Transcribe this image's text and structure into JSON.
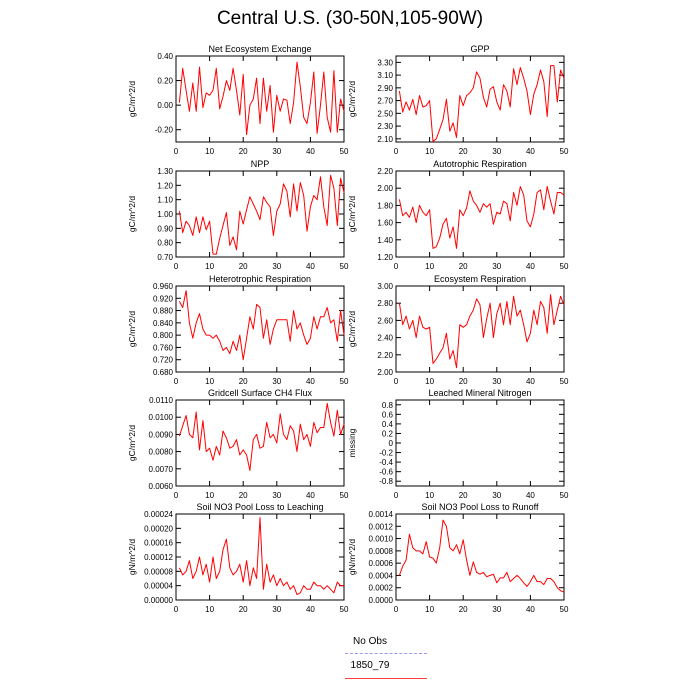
{
  "title": "Central U.S. (30-50N,105-90W)",
  "legend": {
    "entries": [
      {
        "label": "No Obs",
        "color": "#9b9bf0",
        "style": "dashed"
      },
      {
        "label": "1850_79",
        "color": "#ff3b3b",
        "style": "solid"
      }
    ]
  },
  "colors": {
    "series": "#ff0000"
  },
  "chart_data": [
    {
      "type": "line",
      "title": "Net Ecosystem Exchange",
      "ylabel": "gC/m^2/d",
      "xlim": [
        0,
        50
      ],
      "ylim": [
        -0.3,
        0.4
      ],
      "xticks": [
        "0",
        "10",
        "20",
        "30",
        "40",
        "50"
      ],
      "yticks": [
        "-0.20",
        "0.00",
        "0.20",
        "0.40"
      ],
      "x": [
        1,
        2,
        3,
        4,
        5,
        6,
        7,
        8,
        9,
        10,
        11,
        12,
        13,
        14,
        15,
        16,
        17,
        18,
        19,
        20,
        21,
        22,
        23,
        24,
        25,
        26,
        27,
        28,
        29,
        30,
        31,
        32,
        33,
        34,
        35,
        36,
        37,
        38,
        39,
        40,
        41,
        42,
        43,
        44,
        45,
        46,
        47,
        48,
        49,
        50
      ],
      "values": [
        0.02,
        0.3,
        0.12,
        -0.05,
        0.18,
        -0.05,
        0.31,
        -0.02,
        0.1,
        0.08,
        0.12,
        0.3,
        -0.03,
        0.07,
        0.2,
        0.12,
        0.3,
        0.12,
        -0.08,
        0.25,
        -0.24,
        0.0,
        0.05,
        0.22,
        -0.15,
        0.22,
        -0.05,
        0.16,
        -0.22,
        0.08,
        -0.05,
        0.05,
        0.04,
        -0.15,
        0.02,
        0.35,
        0.15,
        -0.1,
        -0.15,
        0.02,
        0.27,
        -0.23,
        0.0,
        0.27,
        -0.1,
        -0.22,
        0.28,
        -0.22,
        0.05,
        -0.05
      ]
    },
    {
      "type": "line",
      "title": "GPP",
      "ylabel": "gC/m^2/d",
      "xlim": [
        0,
        50
      ],
      "ylim": [
        2.05,
        3.4
      ],
      "xticks": [
        "0",
        "10",
        "20",
        "30",
        "40",
        "50"
      ],
      "yticks": [
        "2.10",
        "2.30",
        "2.50",
        "2.70",
        "2.90",
        "3.10",
        "3.30"
      ],
      "x": [
        1,
        2,
        3,
        4,
        5,
        6,
        7,
        8,
        9,
        10,
        11,
        12,
        13,
        14,
        15,
        16,
        17,
        18,
        19,
        20,
        21,
        22,
        23,
        24,
        25,
        26,
        27,
        28,
        29,
        30,
        31,
        32,
        33,
        34,
        35,
        36,
        37,
        38,
        39,
        40,
        41,
        42,
        43,
        44,
        45,
        46,
        47,
        48,
        49,
        50
      ],
      "values": [
        2.85,
        2.52,
        2.68,
        2.55,
        2.72,
        2.48,
        2.78,
        2.6,
        2.62,
        2.7,
        2.06,
        2.1,
        2.25,
        2.4,
        2.72,
        2.22,
        2.35,
        2.12,
        2.78,
        2.62,
        2.78,
        2.82,
        2.9,
        3.15,
        3.05,
        2.75,
        2.6,
        2.88,
        2.92,
        2.68,
        2.55,
        2.95,
        2.85,
        2.6,
        3.2,
        2.95,
        3.22,
        3.05,
        2.85,
        2.48,
        2.8,
        2.95,
        3.18,
        3.0,
        2.45,
        3.25,
        3.25,
        2.68,
        3.18,
        3.05
      ]
    },
    {
      "type": "line",
      "title": "NPP",
      "ylabel": "gC/m^2/d",
      "xlim": [
        0,
        50
      ],
      "ylim": [
        0.7,
        1.3
      ],
      "xticks": [
        "0",
        "10",
        "20",
        "30",
        "40",
        "50"
      ],
      "yticks": [
        "0.70",
        "0.80",
        "0.90",
        "1.00",
        "1.10",
        "1.20",
        "1.30"
      ],
      "x": [
        1,
        2,
        3,
        4,
        5,
        6,
        7,
        8,
        9,
        10,
        11,
        12,
        13,
        14,
        15,
        16,
        17,
        18,
        19,
        20,
        21,
        22,
        23,
        24,
        25,
        26,
        27,
        28,
        29,
        30,
        31,
        32,
        33,
        34,
        35,
        36,
        37,
        38,
        39,
        40,
        41,
        42,
        43,
        44,
        45,
        46,
        47,
        48,
        49,
        50
      ],
      "values": [
        1.02,
        0.87,
        0.95,
        0.92,
        0.85,
        0.98,
        0.87,
        0.98,
        0.89,
        0.95,
        0.72,
        0.72,
        0.83,
        0.92,
        1.01,
        0.78,
        0.84,
        0.75,
        1.02,
        0.93,
        1.03,
        1.12,
        1.07,
        1.02,
        0.96,
        1.12,
        1.08,
        1.05,
        0.85,
        1.02,
        1.07,
        1.21,
        1.16,
        0.98,
        1.21,
        1.02,
        1.22,
        1.13,
        0.88,
        1.05,
        1.13,
        1.1,
        1.26,
        1.05,
        0.92,
        1.27,
        1.18,
        0.92,
        1.25,
        1.15
      ]
    },
    {
      "type": "line",
      "title": "Autotrophic Respiration",
      "ylabel": "gC/m^2/d",
      "xlim": [
        0,
        50
      ],
      "ylim": [
        1.2,
        2.2
      ],
      "xticks": [
        "0",
        "10",
        "20",
        "30",
        "40",
        "50"
      ],
      "yticks": [
        "1.20",
        "1.40",
        "1.60",
        "1.80",
        "2.00",
        "2.20"
      ],
      "x": [
        1,
        2,
        3,
        4,
        5,
        6,
        7,
        8,
        9,
        10,
        11,
        12,
        13,
        14,
        15,
        16,
        17,
        18,
        19,
        20,
        21,
        22,
        23,
        24,
        25,
        26,
        27,
        28,
        29,
        30,
        31,
        32,
        33,
        34,
        35,
        36,
        37,
        38,
        39,
        40,
        41,
        42,
        43,
        44,
        45,
        46,
        47,
        48,
        49,
        50
      ],
      "values": [
        1.87,
        1.68,
        1.72,
        1.66,
        1.78,
        1.6,
        1.8,
        1.72,
        1.68,
        1.75,
        1.3,
        1.32,
        1.42,
        1.58,
        1.65,
        1.42,
        1.55,
        1.3,
        1.75,
        1.68,
        1.77,
        1.97,
        1.85,
        1.8,
        1.72,
        1.82,
        1.78,
        1.82,
        1.58,
        1.72,
        1.7,
        1.85,
        1.82,
        1.62,
        1.95,
        1.8,
        2.02,
        1.92,
        1.62,
        1.55,
        1.7,
        1.95,
        1.98,
        1.75,
        2.02,
        1.85,
        1.7,
        1.95,
        1.95,
        1.92
      ]
    },
    {
      "type": "line",
      "title": "Heterotrophic Respiration",
      "ylabel": "gC/m^2/d",
      "xlim": [
        0,
        50
      ],
      "ylim": [
        0.68,
        0.96
      ],
      "xticks": [
        "0",
        "10",
        "20",
        "30",
        "40",
        "50"
      ],
      "yticks": [
        "0.680",
        "0.720",
        "0.760",
        "0.800",
        "0.840",
        "0.880",
        "0.920",
        "0.960"
      ],
      "x": [
        1,
        2,
        3,
        4,
        5,
        6,
        7,
        8,
        9,
        10,
        11,
        12,
        13,
        14,
        15,
        16,
        17,
        18,
        19,
        20,
        21,
        22,
        23,
        24,
        25,
        26,
        27,
        28,
        29,
        30,
        31,
        32,
        33,
        34,
        35,
        36,
        37,
        38,
        39,
        40,
        41,
        42,
        43,
        44,
        45,
        46,
        47,
        48,
        49,
        50
      ],
      "values": [
        0.91,
        0.89,
        0.945,
        0.84,
        0.79,
        0.84,
        0.87,
        0.82,
        0.8,
        0.8,
        0.79,
        0.8,
        0.78,
        0.75,
        0.76,
        0.74,
        0.78,
        0.75,
        0.8,
        0.72,
        0.79,
        0.86,
        0.82,
        0.9,
        0.89,
        0.79,
        0.85,
        0.77,
        0.82,
        0.85,
        0.85,
        0.85,
        0.85,
        0.78,
        0.88,
        0.82,
        0.84,
        0.8,
        0.77,
        0.79,
        0.86,
        0.82,
        0.86,
        0.86,
        0.89,
        0.84,
        0.85,
        0.78,
        0.88,
        0.8
      ]
    },
    {
      "type": "line",
      "title": "Ecosystem Respiration",
      "ylabel": "gC/m^2/d",
      "xlim": [
        0,
        50
      ],
      "ylim": [
        2.0,
        3.0
      ],
      "xticks": [
        "0",
        "10",
        "20",
        "30",
        "40",
        "50"
      ],
      "yticks": [
        "2.00",
        "2.20",
        "2.40",
        "2.60",
        "2.80",
        "3.00"
      ],
      "x": [
        1,
        2,
        3,
        4,
        5,
        6,
        7,
        8,
        9,
        10,
        11,
        12,
        13,
        14,
        15,
        16,
        17,
        18,
        19,
        20,
        21,
        22,
        23,
        24,
        25,
        26,
        27,
        28,
        29,
        30,
        31,
        32,
        33,
        34,
        35,
        36,
        37,
        38,
        39,
        40,
        41,
        42,
        43,
        44,
        45,
        46,
        47,
        48,
        49,
        50
      ],
      "values": [
        2.8,
        2.55,
        2.65,
        2.5,
        2.6,
        2.4,
        2.65,
        2.52,
        2.5,
        2.52,
        2.1,
        2.15,
        2.22,
        2.28,
        2.45,
        2.15,
        2.25,
        2.05,
        2.55,
        2.52,
        2.55,
        2.65,
        2.72,
        2.85,
        2.78,
        2.4,
        2.62,
        2.8,
        2.4,
        2.68,
        2.8,
        2.55,
        2.82,
        2.55,
        2.88,
        2.65,
        2.72,
        2.55,
        2.35,
        2.45,
        2.72,
        2.55,
        2.82,
        2.75,
        2.45,
        2.9,
        2.55,
        2.72,
        2.88,
        2.78
      ]
    },
    {
      "type": "line",
      "title": "Gridcell Surface CH4 Flux",
      "ylabel": "gC/m^2/d",
      "xlim": [
        0,
        50
      ],
      "ylim": [
        0.006,
        0.011
      ],
      "xticks": [
        "0",
        "10",
        "20",
        "30",
        "40",
        "50"
      ],
      "yticks": [
        "0.0060",
        "0.0070",
        "0.0080",
        "0.0090",
        "0.0100",
        "0.0110"
      ],
      "x": [
        1,
        2,
        3,
        4,
        5,
        6,
        7,
        8,
        9,
        10,
        11,
        12,
        13,
        14,
        15,
        16,
        17,
        18,
        19,
        20,
        21,
        22,
        23,
        24,
        25,
        26,
        27,
        28,
        29,
        30,
        31,
        32,
        33,
        34,
        35,
        36,
        37,
        38,
        39,
        40,
        41,
        42,
        43,
        44,
        45,
        46,
        47,
        48,
        49,
        50
      ],
      "values": [
        0.0089,
        0.0095,
        0.0101,
        0.009,
        0.0088,
        0.0103,
        0.0081,
        0.0098,
        0.008,
        0.0082,
        0.0075,
        0.0083,
        0.0078,
        0.0092,
        0.0088,
        0.0082,
        0.0083,
        0.0087,
        0.0078,
        0.0081,
        0.0078,
        0.0069,
        0.0087,
        0.009,
        0.0082,
        0.0083,
        0.0097,
        0.0088,
        0.009,
        0.0085,
        0.0102,
        0.009,
        0.0087,
        0.0095,
        0.0092,
        0.008,
        0.0096,
        0.0087,
        0.009,
        0.0083,
        0.0097,
        0.0091,
        0.0094,
        0.0094,
        0.0108,
        0.0097,
        0.0089,
        0.0104,
        0.009,
        0.0096
      ]
    },
    {
      "type": "line",
      "title": "Leached Mineral Nitrogen",
      "ylabel": "missing",
      "xlim": [
        0,
        50
      ],
      "ylim": [
        -0.9,
        0.9
      ],
      "xticks": [
        "0",
        "10",
        "20",
        "30",
        "40",
        "50"
      ],
      "yticks": [
        "-0.8",
        "-0.6",
        "-0.4",
        "-0.2",
        "0",
        "0.2",
        "0.4",
        "0.6",
        "0.8"
      ],
      "x": [],
      "values": []
    },
    {
      "type": "line",
      "title": "Soil NO3 Pool Loss to Leaching",
      "ylabel": "gN/m^2/d",
      "xlim": [
        0,
        50
      ],
      "ylim": [
        0,
        0.00024
      ],
      "xticks": [
        "0",
        "10",
        "20",
        "30",
        "40",
        "50"
      ],
      "yticks": [
        "0.00000",
        "0.00004",
        "0.00008",
        "0.00012",
        "0.00016",
        "0.00020",
        "0.00024"
      ],
      "x": [
        1,
        2,
        3,
        4,
        5,
        6,
        7,
        8,
        9,
        10,
        11,
        12,
        13,
        14,
        15,
        16,
        17,
        18,
        19,
        20,
        21,
        22,
        23,
        24,
        25,
        26,
        27,
        28,
        29,
        30,
        31,
        32,
        33,
        34,
        35,
        36,
        37,
        38,
        39,
        40,
        41,
        42,
        43,
        44,
        45,
        46,
        47,
        48,
        49,
        50
      ],
      "values": [
        9e-05,
        7e-05,
        8e-05,
        0.00011,
        6e-05,
        8e-05,
        0.00012,
        7e-05,
        0.0001,
        5e-05,
        0.00012,
        6e-05,
        8e-05,
        0.00014,
        0.00017,
        9e-05,
        7e-05,
        8e-05,
        0.0001,
        5e-05,
        0.00011,
        4e-05,
        9e-05,
        6e-05,
        0.00023,
        3e-05,
        0.0001,
        5e-05,
        7e-05,
        4e-05,
        6e-05,
        4e-05,
        5e-05,
        3e-05,
        4e-05,
        1.5e-05,
        2e-05,
        4e-05,
        3e-05,
        3e-05,
        5e-05,
        4e-05,
        4e-05,
        3e-05,
        4e-05,
        3e-05,
        2e-05,
        5e-05,
        4e-05,
        4e-05
      ]
    },
    {
      "type": "line",
      "title": "Soil NO3 Pool Loss to Runoff",
      "ylabel": "gN/m^2/d",
      "xlim": [
        0,
        50
      ],
      "ylim": [
        0,
        0.0014
      ],
      "xticks": [
        "0",
        "10",
        "20",
        "30",
        "40",
        "50"
      ],
      "yticks": [
        "0.0000",
        "0.0002",
        "0.0004",
        "0.0006",
        "0.0008",
        "0.0010",
        "0.0012",
        "0.0014"
      ],
      "x": [
        1,
        2,
        3,
        4,
        5,
        6,
        7,
        8,
        9,
        10,
        11,
        12,
        13,
        14,
        15,
        16,
        17,
        18,
        19,
        20,
        21,
        22,
        23,
        24,
        25,
        26,
        27,
        28,
        29,
        30,
        31,
        32,
        33,
        34,
        35,
        36,
        37,
        38,
        39,
        40,
        41,
        42,
        43,
        44,
        45,
        46,
        47,
        48,
        49,
        50
      ],
      "values": [
        0.0004,
        0.00055,
        0.00065,
        0.00107,
        0.00085,
        0.0008,
        0.0008,
        0.00075,
        0.00095,
        0.0007,
        0.00068,
        0.0006,
        0.00085,
        0.0013,
        0.0012,
        0.00085,
        0.0008,
        0.0009,
        0.00075,
        0.00098,
        0.00065,
        0.0004,
        0.00062,
        0.00045,
        0.00042,
        0.00045,
        0.00038,
        0.0004,
        0.00042,
        0.00028,
        0.00036,
        0.00036,
        0.00045,
        0.0003,
        0.00035,
        0.0004,
        0.00035,
        0.00028,
        0.00022,
        0.0003,
        0.0004,
        0.0003,
        0.0003,
        0.00025,
        0.00035,
        0.00035,
        0.0003,
        0.0002,
        0.00015,
        0.00013
      ]
    }
  ]
}
